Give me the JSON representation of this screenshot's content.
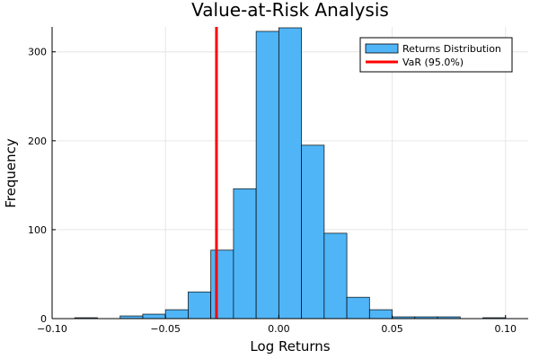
{
  "chart_data": {
    "type": "bar",
    "title": "Value-at-Risk Analysis",
    "xlabel": "Log Returns",
    "ylabel": "Frequency",
    "xlim": [
      -0.1,
      0.11
    ],
    "ylim": [
      0,
      328
    ],
    "x_ticks": [
      -0.1,
      -0.05,
      0.0,
      0.05,
      0.1
    ],
    "x_tick_labels": [
      "−0.10",
      "−0.05",
      "0.00",
      "0.05",
      "0.10"
    ],
    "y_ticks": [
      0,
      100,
      200,
      300
    ],
    "y_tick_labels": [
      "0",
      "100",
      "200",
      "300"
    ],
    "grid": true,
    "legend_position": "top-right",
    "series": [
      {
        "name": "Returns Distribution",
        "kind": "histogram",
        "color": "#4fb5f7",
        "bin_width": 0.01,
        "bins": [
          {
            "start": -0.09,
            "count": 1
          },
          {
            "start": -0.08,
            "count": 0
          },
          {
            "start": -0.07,
            "count": 3
          },
          {
            "start": -0.06,
            "count": 5
          },
          {
            "start": -0.05,
            "count": 10
          },
          {
            "start": -0.04,
            "count": 30
          },
          {
            "start": -0.03,
            "count": 77
          },
          {
            "start": -0.02,
            "count": 146
          },
          {
            "start": -0.01,
            "count": 323
          },
          {
            "start": 0.0,
            "count": 327
          },
          {
            "start": 0.01,
            "count": 195
          },
          {
            "start": 0.02,
            "count": 96
          },
          {
            "start": 0.03,
            "count": 24
          },
          {
            "start": 0.04,
            "count": 10
          },
          {
            "start": 0.05,
            "count": 2
          },
          {
            "start": 0.06,
            "count": 2
          },
          {
            "start": 0.07,
            "count": 2
          },
          {
            "start": 0.08,
            "count": 0
          },
          {
            "start": 0.09,
            "count": 1
          }
        ]
      },
      {
        "name": "VaR (95.0%)",
        "kind": "vline",
        "color": "#ff0000",
        "x": -0.0275
      }
    ]
  }
}
